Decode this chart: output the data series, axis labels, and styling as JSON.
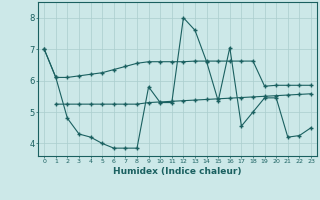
{
  "xlabel": "Humidex (Indice chaleur)",
  "bg_color": "#cce8e8",
  "grid_color": "#aacece",
  "line_color": "#1a6060",
  "xlim": [
    -0.5,
    23.5
  ],
  "ylim": [
    3.6,
    8.5
  ],
  "yticks": [
    4,
    5,
    6,
    7,
    8
  ],
  "xticks": [
    0,
    1,
    2,
    3,
    4,
    5,
    6,
    7,
    8,
    9,
    10,
    11,
    12,
    13,
    14,
    15,
    16,
    17,
    18,
    19,
    20,
    21,
    22,
    23
  ],
  "line1_x": [
    0,
    1,
    2,
    3,
    4,
    5,
    6,
    7,
    8,
    9,
    10,
    11,
    12,
    13,
    14,
    15,
    16,
    17,
    18,
    19,
    20,
    21,
    22,
    23
  ],
  "line1_y": [
    7.0,
    6.1,
    6.1,
    6.15,
    6.2,
    6.25,
    6.35,
    6.45,
    6.55,
    6.6,
    6.6,
    6.6,
    6.6,
    6.62,
    6.62,
    6.62,
    6.62,
    6.62,
    6.62,
    5.82,
    5.85,
    5.85,
    5.85,
    5.85
  ],
  "line2_x": [
    0,
    1,
    2,
    3,
    4,
    5,
    6,
    7,
    8,
    9,
    10,
    11,
    12,
    13,
    14,
    15,
    16,
    17,
    18,
    19,
    20,
    21,
    22,
    23
  ],
  "line2_y": [
    7.0,
    6.1,
    4.8,
    4.3,
    4.2,
    4.0,
    3.85,
    3.85,
    3.85,
    5.8,
    5.3,
    5.3,
    8.0,
    7.6,
    6.6,
    5.35,
    7.05,
    4.55,
    5.0,
    5.45,
    5.45,
    4.2,
    4.25,
    4.5
  ],
  "line3_x": [
    1,
    2,
    3,
    4,
    5,
    6,
    7,
    8,
    9,
    10,
    11,
    12,
    13,
    14,
    15,
    16,
    17,
    18,
    19,
    20,
    21,
    22,
    23
  ],
  "line3_y": [
    5.25,
    5.25,
    5.25,
    5.25,
    5.25,
    5.25,
    5.25,
    5.25,
    5.3,
    5.32,
    5.34,
    5.36,
    5.38,
    5.4,
    5.42,
    5.44,
    5.46,
    5.48,
    5.5,
    5.52,
    5.54,
    5.56,
    5.58
  ]
}
